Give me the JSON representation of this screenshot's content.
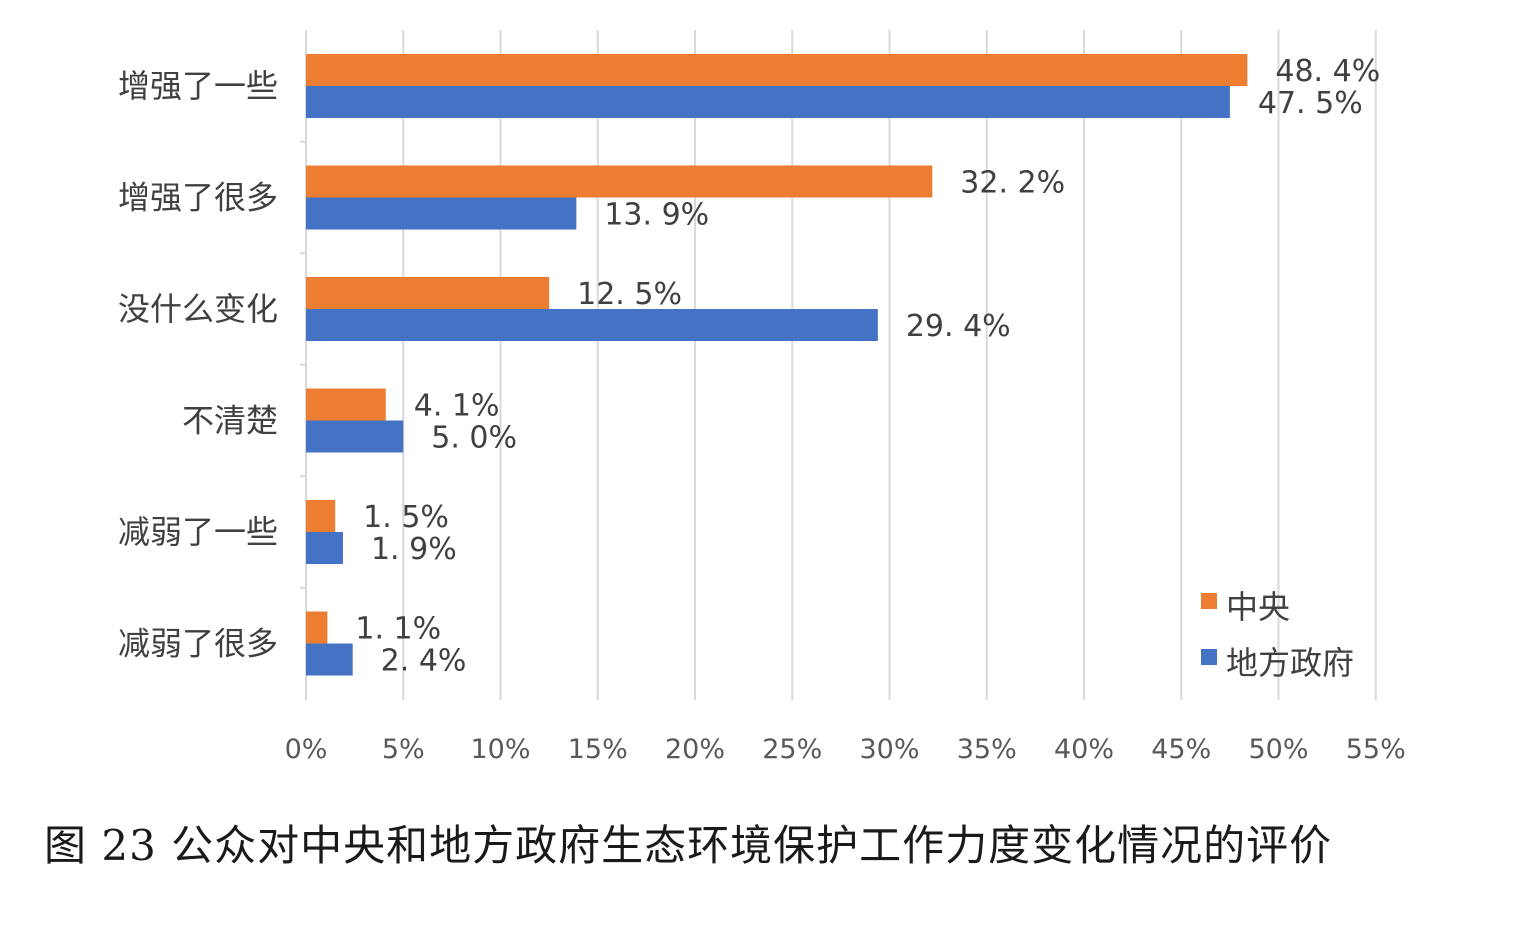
{
  "caption": "图 23 公众对中央和地方政府生态环境保护工作力度变化情况的评价",
  "chart_data": {
    "type": "bar",
    "orientation": "horizontal",
    "categories": [
      "增强了一些",
      "增强了很多",
      "没什么变化",
      "不清楚",
      "减弱了一些",
      "减弱了很多"
    ],
    "series": [
      {
        "name": "中央",
        "color": "#ED7D31",
        "values": [
          48.4,
          32.2,
          12.5,
          4.1,
          1.5,
          1.1
        ],
        "labels": [
          "48. 4%",
          "32. 2%",
          "12. 5%",
          "4. 1%",
          "1. 5%",
          "1. 1%"
        ]
      },
      {
        "name": "地方政府",
        "color": "#4472C4",
        "values": [
          47.5,
          13.9,
          29.4,
          5.0,
          1.9,
          2.4
        ],
        "labels": [
          "47. 5%",
          "13. 9%",
          "29. 4%",
          "5. 0%",
          "1. 9%",
          "2. 4%"
        ]
      }
    ],
    "xlim": [
      0,
      55
    ],
    "x_ticks": [
      "0%",
      "5%",
      "10%",
      "15%",
      "20%",
      "25%",
      "30%",
      "35%",
      "40%",
      "45%",
      "50%",
      "55%"
    ],
    "grid": true,
    "legend_position": "bottom-right"
  }
}
